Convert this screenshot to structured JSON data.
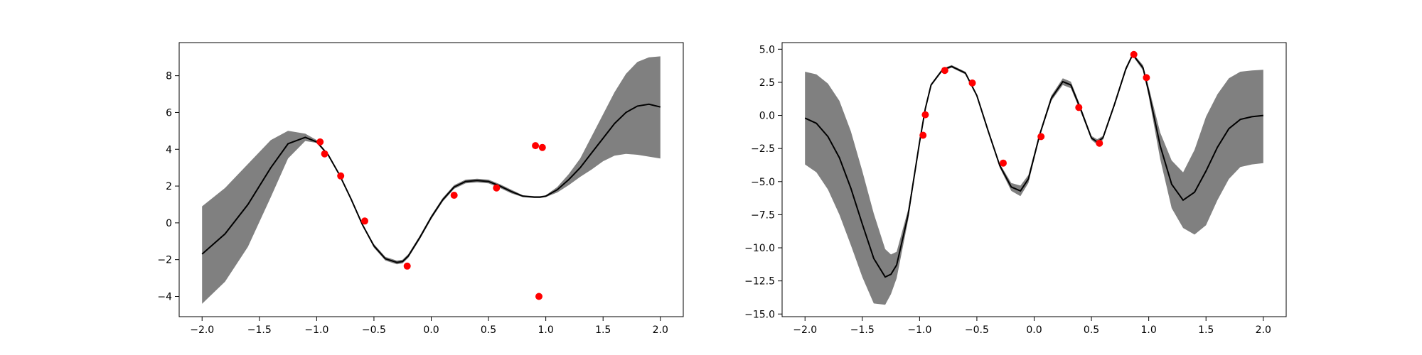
{
  "colors": {
    "band": "#808080",
    "mean": "#000000",
    "points": "#ff0000"
  },
  "chart_data": [
    {
      "type": "line",
      "title": "",
      "xlabel": "",
      "ylabel": "",
      "xlim": [
        -2.2,
        2.2
      ],
      "ylim": [
        -5.1,
        9.8
      ],
      "grid": false,
      "xticks": [
        -2.0,
        -1.5,
        -1.0,
        -0.5,
        0.0,
        0.5,
        1.0,
        1.5,
        2.0
      ],
      "xtick_labels": [
        "−2.0",
        "−1.5",
        "−1.0",
        "−0.5",
        "0.0",
        "0.5",
        "1.0",
        "1.5",
        "2.0"
      ],
      "yticks": [
        -4,
        -2,
        0,
        2,
        4,
        6,
        8
      ],
      "ytick_labels": [
        "−4",
        "−2",
        "0",
        "2",
        "4",
        "6",
        "8"
      ],
      "series": [
        {
          "kind": "mean_with_band",
          "x": [
            -2.0,
            -1.8,
            -1.6,
            -1.4,
            -1.25,
            -1.1,
            -1.0,
            -0.9,
            -0.8,
            -0.7,
            -0.6,
            -0.5,
            -0.4,
            -0.3,
            -0.25,
            -0.2,
            -0.1,
            0.0,
            0.1,
            0.2,
            0.3,
            0.4,
            0.5,
            0.6,
            0.7,
            0.8,
            0.9,
            0.95,
            1.0,
            1.1,
            1.2,
            1.3,
            1.4,
            1.5,
            1.6,
            1.7,
            1.8,
            1.9,
            2.0
          ],
          "mean": [
            -1.7,
            -0.6,
            1.0,
            3.0,
            4.3,
            4.65,
            4.4,
            3.7,
            2.6,
            1.3,
            -0.1,
            -1.25,
            -1.95,
            -2.15,
            -2.1,
            -1.8,
            -0.8,
            0.3,
            1.25,
            1.95,
            2.25,
            2.3,
            2.25,
            2.0,
            1.7,
            1.45,
            1.4,
            1.4,
            1.45,
            1.8,
            2.35,
            3.0,
            3.8,
            4.6,
            5.4,
            6.0,
            6.35,
            6.45,
            6.3
          ],
          "lower": [
            -4.4,
            -3.2,
            -1.3,
            1.4,
            3.5,
            4.45,
            4.35,
            3.65,
            2.55,
            1.25,
            -0.15,
            -1.35,
            -2.05,
            -2.25,
            -2.2,
            -1.9,
            -0.9,
            0.2,
            1.15,
            1.85,
            2.15,
            2.2,
            2.15,
            1.9,
            1.6,
            1.4,
            1.35,
            1.35,
            1.4,
            1.65,
            2.05,
            2.5,
            2.9,
            3.35,
            3.65,
            3.75,
            3.7,
            3.6,
            3.5
          ],
          "upper": [
            0.9,
            1.9,
            3.2,
            4.5,
            5.0,
            4.85,
            4.5,
            3.75,
            2.65,
            1.35,
            -0.05,
            -1.15,
            -1.85,
            -2.05,
            -2.0,
            -1.7,
            -0.7,
            0.4,
            1.35,
            2.05,
            2.35,
            2.4,
            2.35,
            2.1,
            1.8,
            1.5,
            1.45,
            1.45,
            1.5,
            1.95,
            2.65,
            3.5,
            4.7,
            5.9,
            7.1,
            8.1,
            8.75,
            9.0,
            9.05
          ]
        }
      ],
      "points": {
        "x": [
          -0.97,
          -0.93,
          -0.79,
          -0.58,
          -0.21,
          0.2,
          0.57,
          0.91,
          0.97,
          0.94
        ],
        "y": [
          4.4,
          3.75,
          2.55,
          0.1,
          -2.35,
          1.5,
          1.9,
          4.2,
          4.1,
          -4.0
        ]
      }
    },
    {
      "type": "line",
      "title": "",
      "xlabel": "",
      "ylabel": "",
      "xlim": [
        -2.2,
        2.2
      ],
      "ylim": [
        -15.2,
        5.5
      ],
      "grid": false,
      "xticks": [
        -2.0,
        -1.5,
        -1.0,
        -0.5,
        0.0,
        0.5,
        1.0,
        1.5,
        2.0
      ],
      "xtick_labels": [
        "−2.0",
        "−1.5",
        "−1.0",
        "−0.5",
        "0.0",
        "0.5",
        "1.0",
        "1.5",
        "2.0"
      ],
      "yticks": [
        5.0,
        2.5,
        0.0,
        -2.5,
        -5.0,
        -7.5,
        -10.0,
        -12.5,
        -15.0
      ],
      "ytick_labels": [
        "5.0",
        "2.5",
        "0.0",
        "−2.5",
        "−5.0",
        "−7.5",
        "−10.0",
        "−12.5",
        "−15.0"
      ],
      "series": [
        {
          "kind": "mean_with_band",
          "x": [
            -2.0,
            -1.9,
            -1.8,
            -1.7,
            -1.6,
            -1.5,
            -1.4,
            -1.3,
            -1.25,
            -1.2,
            -1.1,
            -1.0,
            -0.95,
            -0.9,
            -0.8,
            -0.72,
            -0.6,
            -0.5,
            -0.4,
            -0.3,
            -0.2,
            -0.12,
            -0.05,
            0.05,
            0.15,
            0.25,
            0.32,
            0.4,
            0.5,
            0.55,
            0.6,
            0.7,
            0.8,
            0.86,
            0.95,
            1.0,
            1.1,
            1.2,
            1.3,
            1.4,
            1.5,
            1.6,
            1.7,
            1.8,
            1.9,
            2.0
          ],
          "mean": [
            -0.2,
            -0.6,
            -1.6,
            -3.2,
            -5.5,
            -8.2,
            -10.8,
            -12.2,
            -12.0,
            -11.3,
            -7.5,
            -2.0,
            0.5,
            2.3,
            3.45,
            3.7,
            3.2,
            1.5,
            -1.2,
            -3.8,
            -5.4,
            -5.7,
            -4.8,
            -1.4,
            1.3,
            2.55,
            2.3,
            0.6,
            -1.7,
            -2.0,
            -1.7,
            0.8,
            3.5,
            4.6,
            3.6,
            1.8,
            -2.3,
            -5.2,
            -6.4,
            -5.8,
            -4.2,
            -2.4,
            -1.0,
            -0.3,
            -0.1,
            0.0
          ],
          "lower": [
            -3.7,
            -4.3,
            -5.6,
            -7.5,
            -9.8,
            -12.2,
            -14.2,
            -14.3,
            -13.5,
            -12.3,
            -7.9,
            -2.1,
            0.4,
            2.2,
            3.35,
            3.6,
            3.1,
            1.4,
            -1.3,
            -3.95,
            -5.7,
            -6.1,
            -5.1,
            -1.55,
            1.1,
            2.3,
            2.05,
            0.4,
            -1.85,
            -2.2,
            -1.85,
            0.65,
            3.35,
            4.5,
            3.4,
            1.45,
            -3.3,
            -7.0,
            -8.5,
            -9.0,
            -8.3,
            -6.4,
            -4.8,
            -3.9,
            -3.7,
            -3.6
          ],
          "upper": [
            3.3,
            3.1,
            2.4,
            1.1,
            -1.2,
            -4.2,
            -7.4,
            -10.1,
            -10.5,
            -10.3,
            -7.1,
            -1.9,
            0.6,
            2.4,
            3.55,
            3.8,
            3.3,
            1.6,
            -1.1,
            -3.65,
            -5.1,
            -5.3,
            -4.5,
            -1.25,
            1.5,
            2.8,
            2.55,
            0.8,
            -1.55,
            -1.8,
            -1.55,
            0.95,
            3.65,
            4.7,
            3.8,
            2.15,
            -1.3,
            -3.4,
            -4.3,
            -2.6,
            -0.1,
            1.6,
            2.8,
            3.3,
            3.4,
            3.45
          ]
        }
      ],
      "points": {
        "x": [
          -0.97,
          -0.95,
          -0.78,
          -0.54,
          -0.27,
          0.06,
          0.39,
          0.57,
          0.87,
          0.98
        ],
        "y": [
          -1.5,
          0.05,
          3.4,
          2.45,
          -3.6,
          -1.6,
          0.6,
          -2.1,
          4.6,
          2.85
        ]
      }
    }
  ]
}
